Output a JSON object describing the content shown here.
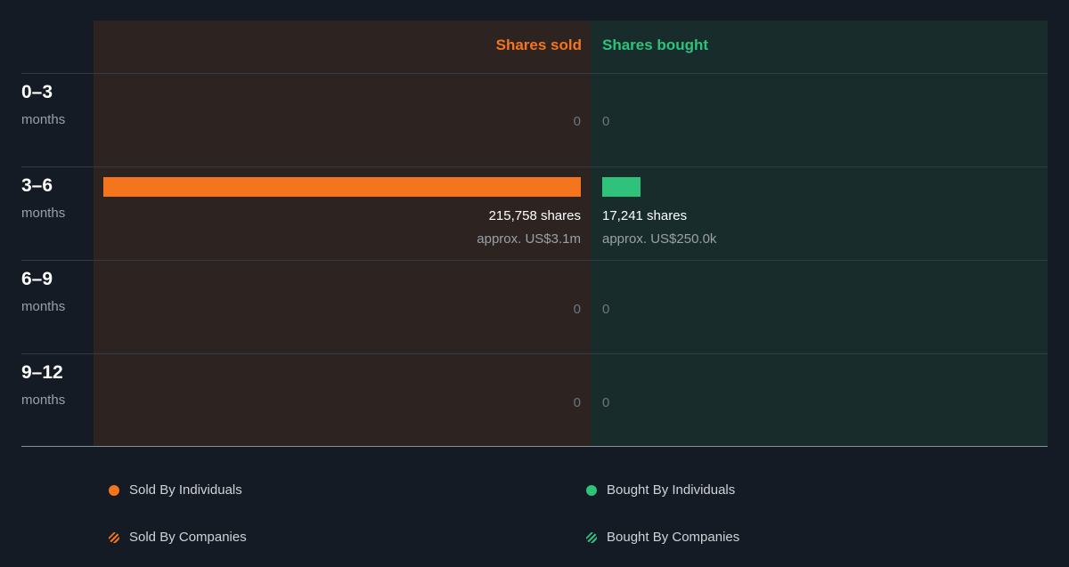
{
  "colors": {
    "sold": "#f5751c",
    "bought": "#2ec27a",
    "sold_panel": "#2d2422",
    "bought_panel": "#182c2c",
    "background": "#151b24"
  },
  "chart_data": {
    "type": "bar",
    "orientation": "horizontal-diverging",
    "headers": {
      "sold": "Shares sold",
      "bought": "Shares bought"
    },
    "categories": [
      {
        "label": "0–3",
        "sub": "months"
      },
      {
        "label": "3–6",
        "sub": "months"
      },
      {
        "label": "6–9",
        "sub": "months"
      },
      {
        "label": "9–12",
        "sub": "months"
      }
    ],
    "series": [
      {
        "name": "Shares sold",
        "values": [
          0,
          215758,
          0,
          0
        ],
        "display": [
          "0",
          "215,758 shares",
          "0",
          "0"
        ],
        "approx": [
          "",
          "approx. US$3.1m",
          "",
          ""
        ]
      },
      {
        "name": "Shares bought",
        "values": [
          0,
          17241,
          0,
          0
        ],
        "display": [
          "0",
          "17,241 shares",
          "0",
          "0"
        ],
        "approx": [
          "",
          "approx. US$250.0k",
          "",
          ""
        ]
      }
    ],
    "scale_max": 215758,
    "legend": [
      {
        "label": "Sold By Individuals",
        "style": "dot",
        "color": "#f5751c"
      },
      {
        "label": "Bought By Individuals",
        "style": "dot",
        "color": "#2ec27a"
      },
      {
        "label": "Sold By Companies",
        "style": "hatch",
        "color": "#f5751c"
      },
      {
        "label": "Bought By Companies",
        "style": "hatch",
        "color": "#2ec27a"
      }
    ],
    "legend_position": "bottom"
  }
}
